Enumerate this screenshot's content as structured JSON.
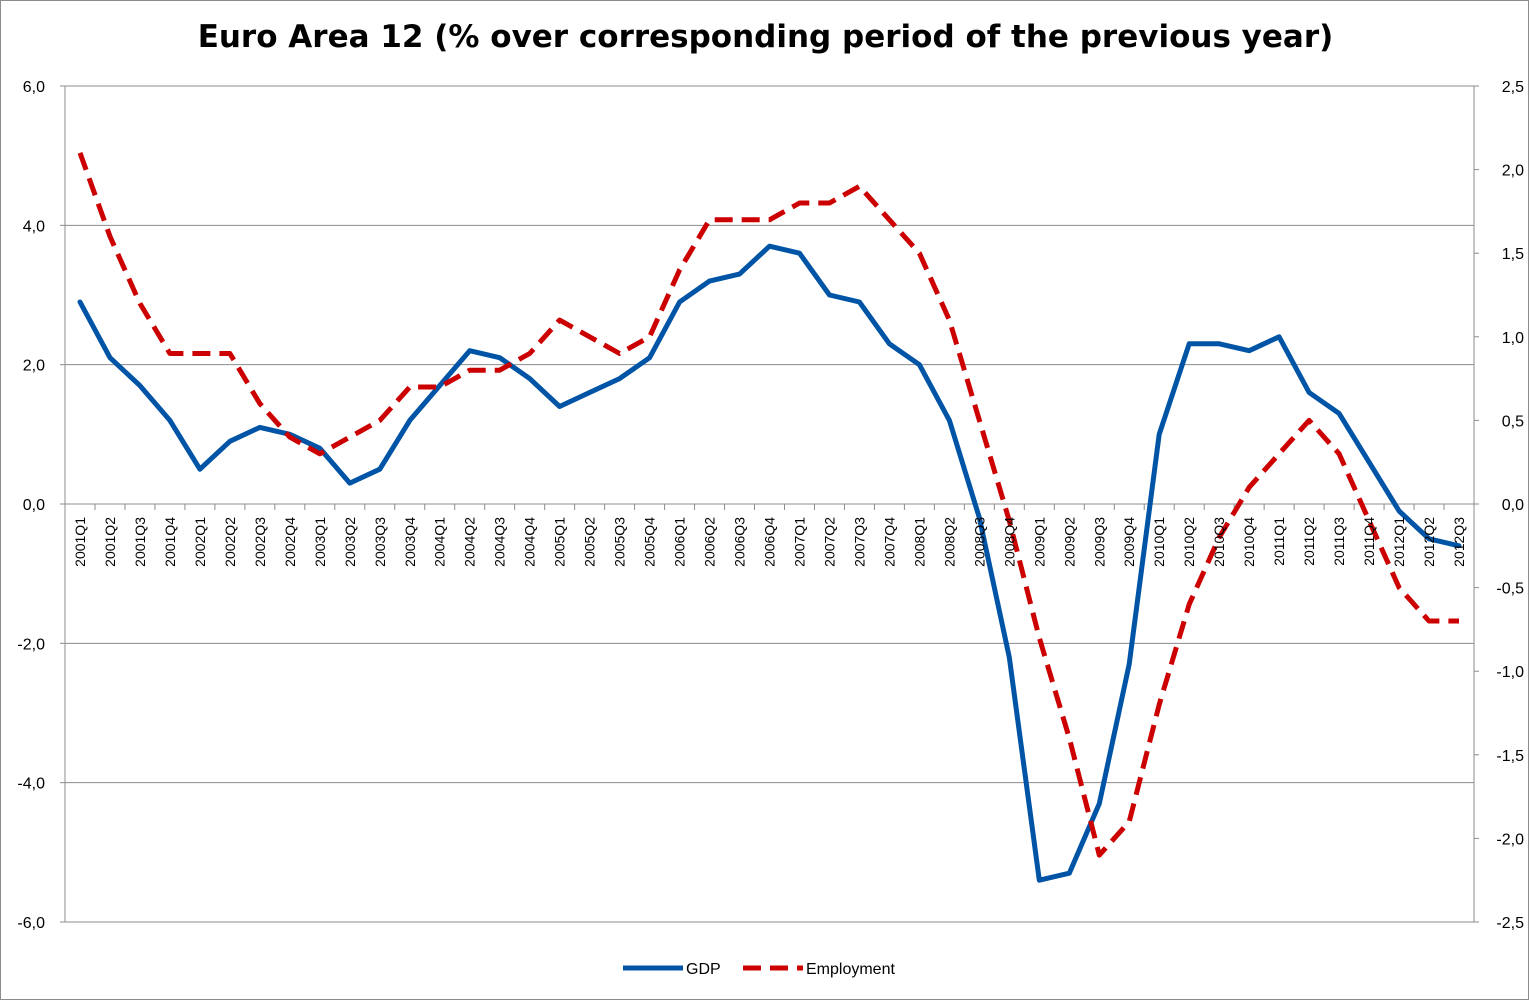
{
  "chart_data": {
    "type": "line",
    "title": "Euro Area 12 (% over corresponding period of the previous year)",
    "categories": [
      "2001Q1",
      "2001Q2",
      "2001Q3",
      "2001Q4",
      "2002Q1",
      "2002Q2",
      "2002Q3",
      "2002Q4",
      "2003Q1",
      "2003Q2",
      "2003Q3",
      "2003Q4",
      "2004Q1",
      "2004Q2",
      "2004Q3",
      "2004Q4",
      "2005Q1",
      "2005Q2",
      "2005Q3",
      "2005Q4",
      "2006Q1",
      "2006Q2",
      "2006Q3",
      "2006Q4",
      "2007Q1",
      "2007Q2",
      "2007Q3",
      "2007Q4",
      "2008Q1",
      "2008Q2",
      "2008Q3",
      "2008Q4",
      "2009Q1",
      "2009Q2",
      "2009Q3",
      "2009Q4",
      "2010Q1",
      "2010Q2",
      "2010Q3",
      "2010Q4",
      "2011Q1",
      "2011Q2",
      "2011Q3",
      "2011Q4",
      "2012Q1",
      "2012Q2",
      "2012Q3"
    ],
    "left_axis": {
      "ylim": [
        -6,
        6
      ],
      "ticks": [
        -6,
        -4,
        -2,
        0,
        2,
        4,
        6
      ],
      "tick_labels": [
        "-6,0",
        "-4,0",
        "-2,0",
        "0,0",
        "2,0",
        "4,0",
        "6,0"
      ]
    },
    "right_axis": {
      "ylim": [
        -2.5,
        2.5
      ],
      "ticks": [
        -2.5,
        -2.0,
        -1.5,
        -1.0,
        -0.5,
        0.0,
        0.5,
        1.0,
        1.5,
        2.0,
        2.5
      ],
      "tick_labels": [
        "-2,5",
        "-2,0",
        "-1,5",
        "-1,0",
        "-0,5",
        "0,0",
        "0,5",
        "1,0",
        "1,5",
        "2,0",
        "2,5"
      ]
    },
    "series": [
      {
        "name": "GDP",
        "axis": "left",
        "color": "#0054a6",
        "style": "solid",
        "values": [
          2.9,
          2.1,
          1.7,
          1.2,
          0.5,
          0.9,
          1.1,
          1.0,
          0.8,
          0.3,
          0.5,
          1.2,
          1.7,
          2.2,
          2.1,
          1.8,
          1.4,
          1.6,
          1.8,
          2.1,
          2.9,
          3.2,
          3.3,
          3.7,
          3.6,
          3.0,
          2.9,
          2.3,
          2.0,
          1.2,
          -0.2,
          -2.2,
          -5.4,
          -5.3,
          -4.3,
          -2.3,
          1.0,
          2.3,
          2.3,
          2.2,
          2.4,
          1.6,
          1.3,
          0.6,
          -0.1,
          -0.5,
          -0.6
        ]
      },
      {
        "name": "Employment",
        "axis": "right",
        "color": "#cc0000",
        "style": "dashed",
        "values": [
          2.1,
          1.6,
          1.2,
          0.9,
          0.9,
          0.9,
          0.6,
          0.4,
          0.3,
          0.4,
          0.5,
          0.7,
          0.7,
          0.8,
          0.8,
          0.9,
          1.1,
          1.0,
          0.9,
          1.0,
          1.4,
          1.7,
          1.7,
          1.7,
          1.8,
          1.8,
          1.9,
          1.7,
          1.5,
          1.1,
          0.5,
          -0.1,
          -0.8,
          -1.4,
          -2.1,
          -1.9,
          -1.2,
          -0.6,
          -0.2,
          0.1,
          0.3,
          0.5,
          0.3,
          -0.1,
          -0.5,
          -0.7,
          -0.7
        ]
      }
    ],
    "grid": true,
    "legend": "bottom-center"
  }
}
